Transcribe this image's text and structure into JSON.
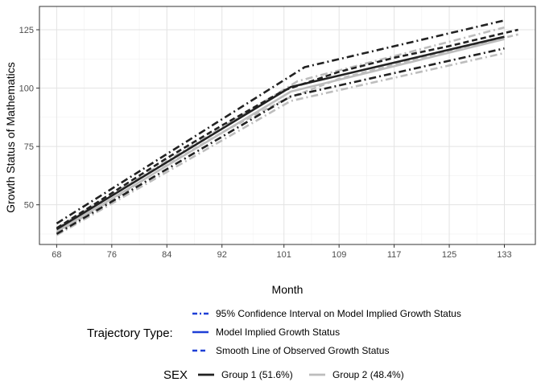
{
  "chart_data": {
    "type": "line",
    "xlabel": "Month",
    "ylabel": "Growth Status of Mathematics",
    "xticks": [
      68,
      76,
      84,
      92,
      101,
      109,
      117,
      125,
      133
    ],
    "yticks": [
      50,
      75,
      100,
      125
    ],
    "xlim": [
      65.5,
      137.5
    ],
    "ylim": [
      33,
      135
    ],
    "grid": true,
    "legend_position": "bottom",
    "legend_trajectory_title": "Trajectory Type:",
    "legend_trajectory_items": [
      "95% Confidence Interval on Model Implied Growth Status",
      "Model Implied Growth Status",
      "Smooth Line of Observed Growth Status"
    ],
    "legend_sex_title": "SEX",
    "legend_sex_items": [
      "Group 1 (51.6%)",
      "Group 2 (48.4%)"
    ],
    "colors": {
      "group1": "#222222",
      "group2": "#bdbdbd",
      "legend_key": "#1f3fd6"
    },
    "series": [
      {
        "group": "Group 1 (51.6%)",
        "type": "model",
        "x": [
          68,
          102,
          133
        ],
        "y": [
          39.5,
          100.5,
          122
        ]
      },
      {
        "group": "Group 1 (51.6%)",
        "type": "ci_upper",
        "x": [
          68,
          104,
          133
        ],
        "y": [
          42,
          109,
          129
        ]
      },
      {
        "group": "Group 1 (51.6%)",
        "type": "ci_lower",
        "x": [
          68,
          102,
          133
        ],
        "y": [
          37.5,
          96.5,
          117
        ]
      },
      {
        "group": "Group 1 (51.6%)",
        "type": "smooth",
        "x": [
          68,
          76,
          84,
          92,
          101,
          109,
          117,
          125,
          135
        ],
        "y": [
          40,
          55,
          70,
          84,
          99,
          107,
          113,
          118,
          125
        ]
      },
      {
        "group": "Group 2 (48.4%)",
        "type": "model",
        "x": [
          68,
          102,
          133
        ],
        "y": [
          38.5,
          98.5,
          121
        ]
      },
      {
        "group": "Group 2 (48.4%)",
        "type": "ci_upper",
        "x": [
          68,
          103,
          133
        ],
        "y": [
          40,
          103,
          126
        ]
      },
      {
        "group": "Group 2 (48.4%)",
        "type": "ci_lower",
        "x": [
          68,
          102,
          133
        ],
        "y": [
          37,
          94.5,
          115
        ]
      },
      {
        "group": "Group 2 (48.4%)",
        "type": "smooth",
        "x": [
          68,
          76,
          84,
          92,
          101,
          109,
          117,
          125,
          135
        ],
        "y": [
          38,
          52,
          67,
          81,
          95,
          104,
          110,
          116,
          123
        ]
      }
    ]
  }
}
